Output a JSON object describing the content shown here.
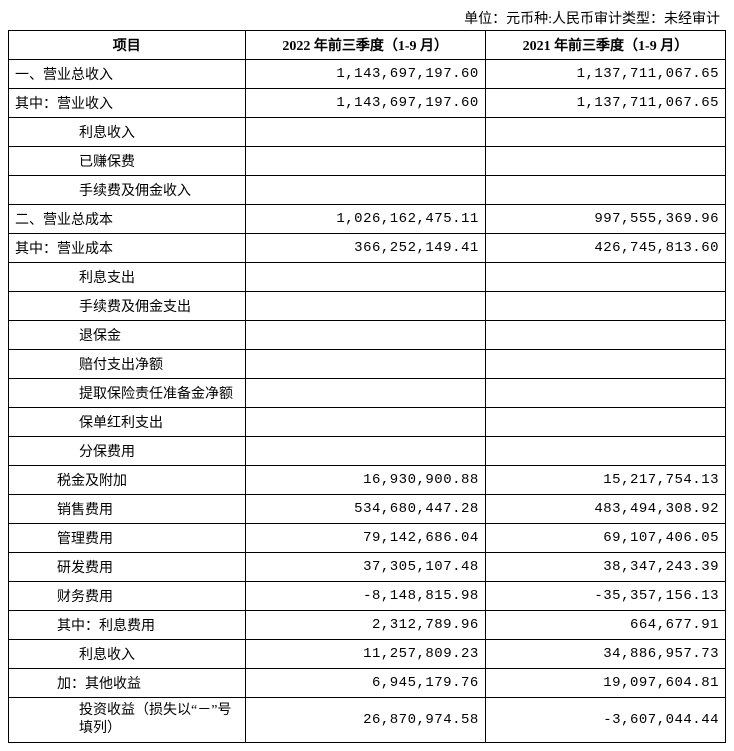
{
  "caption": "单位：元币种:人民币审计类型：未经审计",
  "headers": {
    "item": "项目",
    "col2022": "2022 年前三季度（1-9 月）",
    "col2021": "2021 年前三季度（1-9 月）"
  },
  "rows": [
    {
      "label": "一、营业总收入",
      "indent": 1,
      "v2022": "1,143,697,197.60",
      "v2021": "1,137,711,067.65"
    },
    {
      "label": "其中：营业收入",
      "indent": 1,
      "v2022": "1,143,697,197.60",
      "v2021": "1,137,711,067.65"
    },
    {
      "label": "利息收入",
      "indent": 3,
      "v2022": "",
      "v2021": ""
    },
    {
      "label": "已赚保费",
      "indent": 3,
      "v2022": "",
      "v2021": ""
    },
    {
      "label": "手续费及佣金收入",
      "indent": 3,
      "v2022": "",
      "v2021": ""
    },
    {
      "label": "二、营业总成本",
      "indent": 1,
      "v2022": "1,026,162,475.11",
      "v2021": "997,555,369.96"
    },
    {
      "label": "其中：营业成本",
      "indent": 1,
      "v2022": "366,252,149.41",
      "v2021": "426,745,813.60"
    },
    {
      "label": "利息支出",
      "indent": 3,
      "v2022": "",
      "v2021": ""
    },
    {
      "label": "手续费及佣金支出",
      "indent": 3,
      "v2022": "",
      "v2021": ""
    },
    {
      "label": "退保金",
      "indent": 3,
      "v2022": "",
      "v2021": ""
    },
    {
      "label": "赔付支出净额",
      "indent": 3,
      "v2022": "",
      "v2021": ""
    },
    {
      "label": "提取保险责任准备金净额",
      "indent": 3,
      "v2022": "",
      "v2021": ""
    },
    {
      "label": "保单红利支出",
      "indent": 3,
      "v2022": "",
      "v2021": ""
    },
    {
      "label": "分保费用",
      "indent": 3,
      "v2022": "",
      "v2021": ""
    },
    {
      "label": "税金及附加",
      "indent": 2,
      "v2022": "16,930,900.88",
      "v2021": "15,217,754.13"
    },
    {
      "label": "销售费用",
      "indent": 2,
      "v2022": "534,680,447.28",
      "v2021": "483,494,308.92"
    },
    {
      "label": "管理费用",
      "indent": 2,
      "v2022": "79,142,686.04",
      "v2021": "69,107,406.05"
    },
    {
      "label": "研发费用",
      "indent": 2,
      "v2022": "37,305,107.48",
      "v2021": "38,347,243.39"
    },
    {
      "label": "财务费用",
      "indent": 2,
      "v2022": "-8,148,815.98",
      "v2021": "-35,357,156.13"
    },
    {
      "label": "其中：利息费用",
      "indent": 2,
      "v2022": "2,312,789.96",
      "v2021": "664,677.91"
    },
    {
      "label": "利息收入",
      "indent": 3,
      "v2022": "11,257,809.23",
      "v2021": "34,886,957.73"
    },
    {
      "label": "加：其他收益",
      "indent": 2,
      "v2022": "6,945,179.76",
      "v2021": "19,097,604.81"
    },
    {
      "label": "投资收益（损失以“－”号填列）",
      "indent": 3,
      "wrap": true,
      "v2022": "26,870,974.58",
      "v2021": "-3,607,044.44"
    }
  ]
}
